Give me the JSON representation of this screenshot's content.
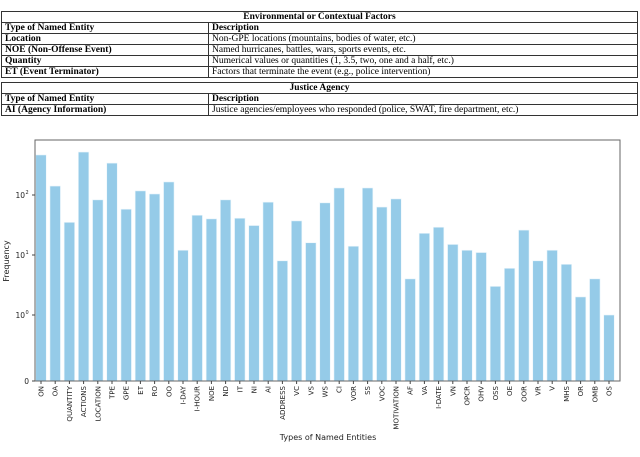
{
  "tables": [
    {
      "section": "Environmental or Contextual Factors",
      "header": [
        "Type of Named Entity",
        "Description"
      ],
      "rows": [
        [
          "Location",
          "Non-GPE locations (mountains, bodies of water, etc.)"
        ],
        [
          "NOE (Non-Offense Event)",
          "Named hurricanes, battles, wars, sports events, etc."
        ],
        [
          "Quantity",
          "Numerical values or quantities (1, 3.5, two, one and a half, etc.)"
        ],
        [
          "ET (Event Terminator)",
          "Factors that terminate the event (e.g., police intervention)"
        ]
      ]
    },
    {
      "section": "Justice Agency",
      "header": [
        "Type of Named Entity",
        "Description"
      ],
      "rows": [
        [
          "AI (Agency Information)",
          "Justice agencies/employees who responded (police, SWAT, fire department, etc.)"
        ]
      ]
    }
  ],
  "chart_data": {
    "type": "bar",
    "xlabel": "Types of Named Entities",
    "ylabel": "Frequency",
    "yscale": "symlog",
    "ylim": [
      0,
      1000
    ],
    "yticks": [
      {
        "v": 0,
        "label": "0"
      },
      {
        "v": 1,
        "label": "10",
        "exp": "0"
      },
      {
        "v": 10,
        "label": "10",
        "exp": "1"
      },
      {
        "v": 100,
        "label": "10",
        "exp": "2"
      }
    ],
    "bar_color": "#95cbe8",
    "categories": [
      "ON",
      "OA",
      "QUANTITY",
      "ACTIONS",
      "LOCATION",
      "TPE",
      "GPE",
      "ET",
      "RO",
      "OO",
      "I-DAY",
      "I-HOUR",
      "NOE",
      "ND",
      "IT",
      "NI",
      "AI",
      "ADDRESS",
      "VC",
      "VS",
      "WS",
      "CI",
      "VOR",
      "SS",
      "VOC",
      "MOTIVATION",
      "AF",
      "VA",
      "I-DATE",
      "VN",
      "OPCR",
      "OHV",
      "OSS",
      "OE",
      "OOR",
      "VR",
      "V",
      "MHS",
      "OR",
      "OMB",
      "OS"
    ],
    "values": [
      465,
      141,
      35,
      520,
      83,
      340,
      58,
      117,
      104,
      165,
      12,
      46,
      40,
      83,
      41,
      31,
      76,
      8,
      37,
      16,
      74,
      131,
      14,
      131,
      63,
      86,
      4,
      23,
      29,
      15,
      12,
      11,
      3,
      6,
      26,
      8,
      12,
      7,
      2,
      4,
      1
    ]
  }
}
